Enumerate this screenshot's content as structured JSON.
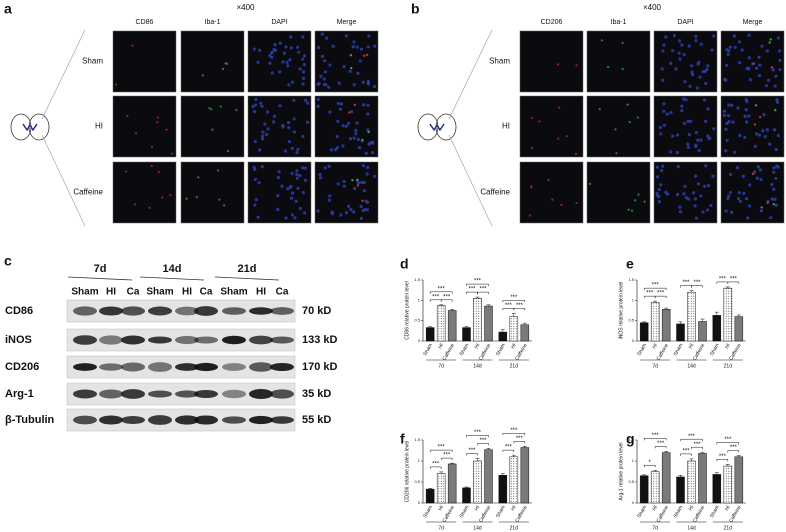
{
  "panels": {
    "a": {
      "letter": "a",
      "magnification": "×400",
      "columns": [
        "CD86",
        "Iba-1",
        "DAPI",
        "Merge"
      ],
      "rows": [
        "Sham",
        "HI",
        "Caffeine"
      ]
    },
    "b": {
      "letter": "b",
      "magnification": "×400",
      "columns": [
        "CD206",
        "Iba-1",
        "DAPI",
        "Merge"
      ],
      "rows": [
        "Sham",
        "HI",
        "Caffeine"
      ]
    },
    "c": {
      "letter": "c",
      "timepoints": [
        "7d",
        "14d",
        "21d"
      ],
      "lanes": [
        "Sham",
        "HI",
        "Ca",
        "Sham",
        "HI",
        "Ca",
        "Sham",
        "HI",
        "Ca"
      ],
      "proteins": [
        {
          "name": "CD86",
          "size": "70 kD"
        },
        {
          "name": "iNOS",
          "size": "133 kD"
        },
        {
          "name": "CD206",
          "size": "170 kD"
        },
        {
          "name": "Arg-1",
          "size": "35 kD"
        },
        {
          "name": "β-Tubulin",
          "size": "55 kD"
        }
      ]
    }
  },
  "chart_data": [
    {
      "type": "bar",
      "label": "d",
      "ylabel": "CD86 relative protein level",
      "categories": [
        "7d",
        "14d",
        "21d"
      ],
      "series": [
        {
          "name": "Sham",
          "color": "#111111",
          "values": [
            0.33,
            0.33,
            0.22
          ],
          "errors": [
            0.02,
            0.02,
            0.06
          ]
        },
        {
          "name": "HI",
          "color": "#ffffff",
          "hatch": "dots",
          "values": [
            0.87,
            1.05,
            0.6
          ],
          "errors": [
            0.02,
            0.03,
            0.08
          ]
        },
        {
          "name": "Caffeine",
          "color": "#7a7a7a",
          "values": [
            0.75,
            0.86,
            0.4
          ],
          "errors": [
            0.03,
            0.03,
            0.04
          ]
        }
      ],
      "ylim": [
        0,
        1.5
      ],
      "yticks": [
        0,
        0.5,
        1,
        1.5
      ],
      "significance": [
        [
          "***",
          "***",
          "***"
        ],
        [
          "***",
          "***",
          "***"
        ],
        [
          "***",
          "***",
          "***"
        ]
      ]
    },
    {
      "type": "bar",
      "label": "e",
      "ylabel": "iNOS relative protein level",
      "categories": [
        "7d",
        "14d",
        "21d"
      ],
      "series": [
        {
          "name": "Sham",
          "color": "#111111",
          "values": [
            0.45,
            0.42,
            0.63
          ],
          "errors": [
            0.02,
            0.05,
            0.08
          ]
        },
        {
          "name": "HI",
          "color": "#ffffff",
          "hatch": "dots",
          "values": [
            0.95,
            1.2,
            1.3
          ],
          "errors": [
            0.03,
            0.04,
            0.03
          ]
        },
        {
          "name": "Caffeine",
          "color": "#7a7a7a",
          "values": [
            0.78,
            0.48,
            0.6
          ],
          "errors": [
            0.03,
            0.06,
            0.04
          ]
        }
      ],
      "ylim": [
        0,
        1.5
      ],
      "yticks": [
        0,
        0.5,
        1,
        1.5
      ],
      "significance": [
        [
          "***",
          "***",
          "***"
        ],
        [
          "***",
          "***",
          null
        ],
        [
          "***",
          "***",
          null
        ]
      ]
    },
    {
      "type": "bar",
      "label": "f",
      "ylabel": "CD206 relative protein level",
      "categories": [
        "7d",
        "14d",
        "21d"
      ],
      "series": [
        {
          "name": "Sham",
          "color": "#111111",
          "values": [
            0.33,
            0.36,
            0.66
          ],
          "errors": [
            0.02,
            0.02,
            0.04
          ]
        },
        {
          "name": "HI",
          "color": "#ffffff",
          "hatch": "dots",
          "values": [
            0.7,
            1.0,
            1.1
          ],
          "errors": [
            0.04,
            0.06,
            0.04
          ]
        },
        {
          "name": "Caffeine",
          "color": "#7a7a7a",
          "values": [
            0.93,
            1.27,
            1.32
          ],
          "errors": [
            0.02,
            0.03,
            0.03
          ]
        }
      ],
      "ylim": [
        0,
        1.5
      ],
      "yticks": [
        0,
        0.5,
        1,
        1.5
      ],
      "significance": [
        [
          "***",
          "***",
          "***"
        ],
        [
          "***",
          "***",
          "***"
        ],
        [
          "***",
          "***",
          "***"
        ]
      ]
    },
    {
      "type": "bar",
      "label": "g",
      "ylabel": "Arg-1 relative protein level",
      "categories": [
        "7d",
        "14d",
        "21d"
      ],
      "series": [
        {
          "name": "Sham",
          "color": "#111111",
          "values": [
            0.65,
            0.62,
            0.68
          ],
          "errors": [
            0.02,
            0.04,
            0.04
          ]
        },
        {
          "name": "HI",
          "color": "#ffffff",
          "hatch": "dots",
          "values": [
            0.75,
            1.0,
            0.88
          ],
          "errors": [
            0.03,
            0.05,
            0.04
          ]
        },
        {
          "name": "Caffeine",
          "color": "#7a7a7a",
          "values": [
            1.2,
            1.18,
            1.1
          ],
          "errors": [
            0.03,
            0.03,
            0.03
          ]
        }
      ],
      "ylim": [
        0,
        1.5
      ],
      "yticks": [
        0,
        0.5,
        1,
        1.5
      ],
      "significance": [
        [
          "*",
          "***",
          "***"
        ],
        [
          "***",
          "***",
          "***"
        ],
        [
          "***",
          "***",
          "***"
        ]
      ]
    }
  ]
}
